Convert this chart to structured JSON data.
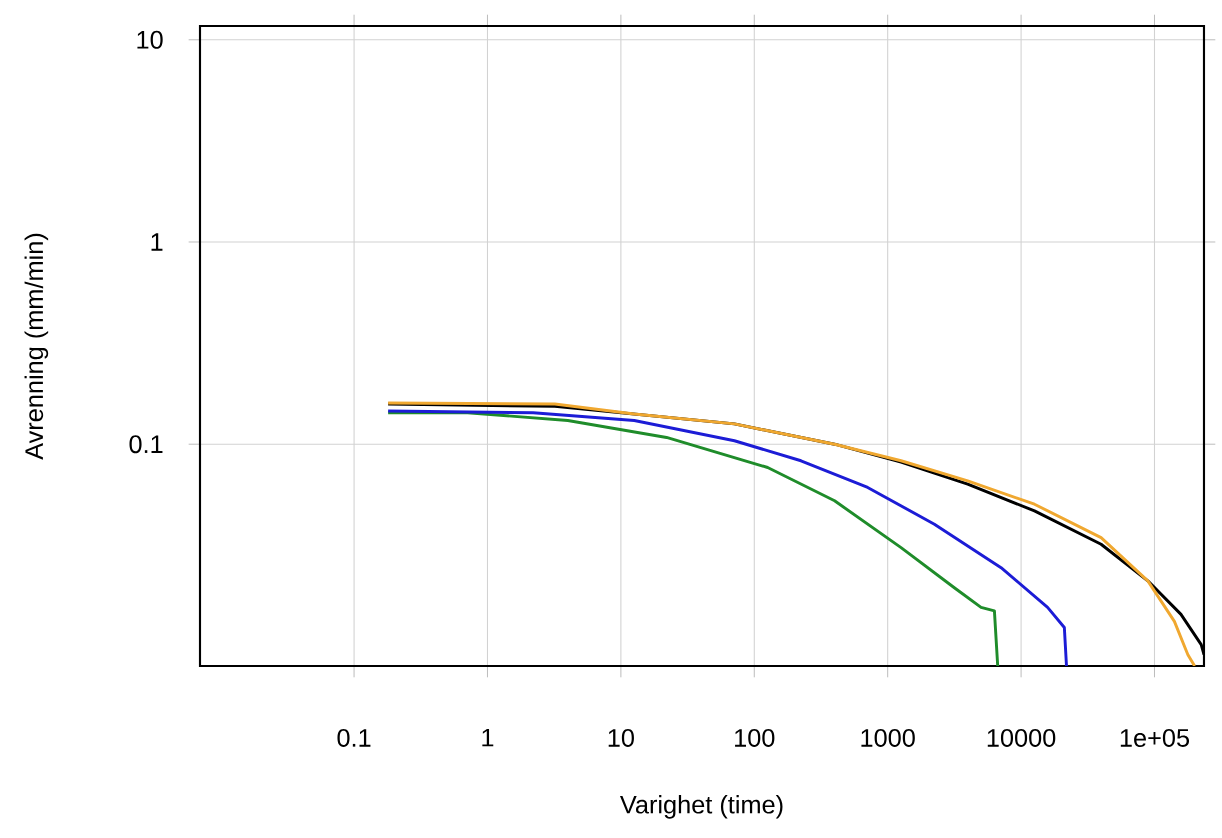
{
  "chart_data": {
    "type": "line",
    "xlabel": "Varighet (time)",
    "ylabel": "Avrenning (mm/min)",
    "log": "xy",
    "grid": true,
    "xlim": [
      0.007,
      235000
    ],
    "ylim": [
      0.008,
      11.7
    ],
    "xticks": [
      0.1,
      1,
      10,
      100,
      1000,
      10000,
      {
        "value": 100000,
        "label": "1e+05"
      }
    ],
    "yticks": [
      0.1,
      1,
      10
    ],
    "series": [
      {
        "color": "#1f8c2a",
        "x": [
          0.18,
          0.71,
          4,
          22,
          126,
          400,
          1260,
          3160,
          5010,
          6310,
          6680
        ],
        "values": [
          0.143,
          0.143,
          0.131,
          0.108,
          0.0767,
          0.0525,
          0.0308,
          0.0195,
          0.0156,
          0.015,
          0.008
        ]
      },
      {
        "color": "#1c1cd6",
        "x": [
          0.18,
          2.2,
          12.6,
          71,
          224,
          708,
          2240,
          7080,
          15800,
          21100,
          21900
        ],
        "values": [
          0.146,
          0.143,
          0.131,
          0.104,
          0.0828,
          0.0611,
          0.0402,
          0.0245,
          0.0156,
          0.0124,
          0.008
        ]
      },
      {
        "color": "#000000",
        "x": [
          0.18,
          3.2,
          71,
          400,
          1260,
          3980,
          12600,
          39800,
          89100,
          158000,
          224000,
          235000
        ],
        "values": [
          0.158,
          0.154,
          0.126,
          0.1,
          0.0815,
          0.0634,
          0.0468,
          0.032,
          0.0211,
          0.0144,
          0.0102,
          0.0091
        ]
      },
      {
        "color": "#f0a830",
        "x": [
          0.18,
          3.2,
          12.6,
          71,
          400,
          1260,
          3980,
          12600,
          39800,
          89100,
          141000,
          178000,
          200000
        ],
        "values": [
          0.16,
          0.158,
          0.141,
          0.126,
          0.1,
          0.0828,
          0.0659,
          0.0505,
          0.0345,
          0.0211,
          0.0133,
          0.0091,
          0.008
        ]
      }
    ]
  }
}
